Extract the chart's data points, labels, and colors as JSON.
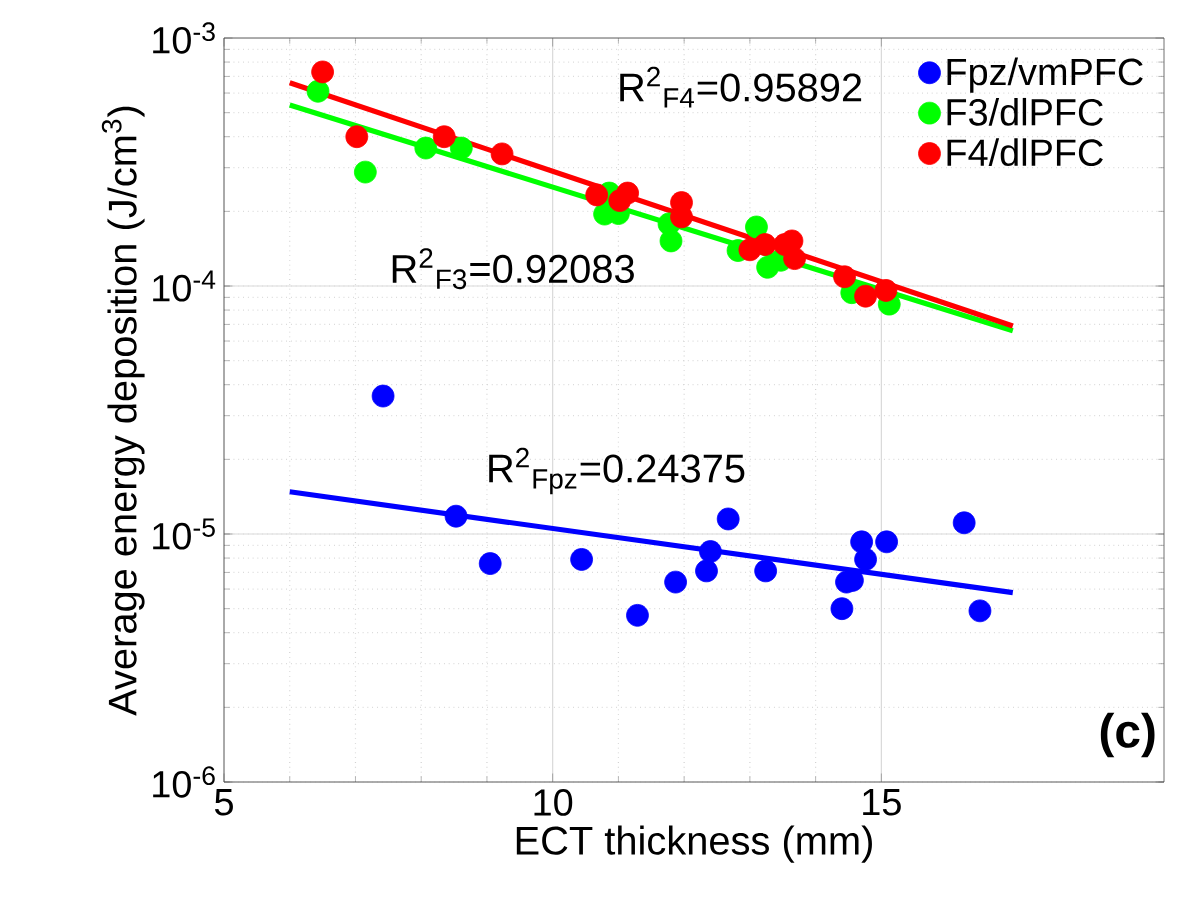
{
  "chart_data": {
    "type": "scatter",
    "xlabel": "ECT thickness (mm)",
    "ylabel": "Average energy deposition (J/cm$^{3}$)",
    "xlim": [
      5,
      19.3
    ],
    "ylim": [
      1e-06,
      0.001
    ],
    "xticks": [
      5,
      10,
      15
    ],
    "yticks": [
      {
        "value": 1e-06,
        "label": "10$^{-6}$"
      },
      {
        "value": 1e-05,
        "label": "10$^{-5}$"
      },
      {
        "value": 0.0001,
        "label": "10$^{-4}$"
      },
      {
        "value": 0.001,
        "label": "10$^{-3}$"
      }
    ],
    "log": "y",
    "grid": true,
    "legend": "top right",
    "marker": "circle",
    "series": [
      {
        "name": "Fpz/vmPFC",
        "color": "#0000ff",
        "x": [
          7.42,
          8.53,
          9.05,
          10.44,
          11.29,
          11.87,
          12.34,
          12.4,
          12.67,
          13.24,
          14.4,
          14.47,
          14.56,
          14.7,
          14.76,
          15.08,
          16.26,
          16.5
        ],
        "values": [
          3.6e-05,
          1.18e-05,
          7.6e-06,
          7.9e-06,
          4.7e-06,
          6.4e-06,
          7.1e-06,
          8.5e-06,
          1.15e-05,
          7.1e-06,
          5e-06,
          6.4e-06,
          6.5e-06,
          9.3e-06,
          7.9e-06,
          9.3e-06,
          1.11e-05,
          4.9e-06
        ]
      },
      {
        "name": "F3/dlPFC",
        "color": "#00ff00",
        "x": [
          6.43,
          7.15,
          8.07,
          8.61,
          10.79,
          10.86,
          11.0,
          11.77,
          11.8,
          12.82,
          13.1,
          13.27,
          13.47,
          14.55,
          15.12
        ],
        "values": [
          0.00061,
          0.000288,
          0.00036,
          0.00036,
          0.000195,
          0.000237,
          0.000196,
          0.000178,
          0.000152,
          0.000139,
          0.000173,
          0.000119,
          0.000127,
          9.4e-05,
          8.45e-05
        ]
      },
      {
        "name": "F4/dlPFC",
        "color": "#ff0000",
        "x": [
          6.5,
          7.02,
          8.35,
          9.23,
          10.67,
          11.02,
          11.14,
          11.96,
          11.96,
          13.0,
          13.23,
          13.53,
          13.64,
          13.68,
          14.44,
          14.76,
          15.07
        ],
        "values": [
          0.00073,
          0.0004,
          0.0004,
          0.000341,
          0.000233,
          0.000221,
          0.000237,
          0.000217,
          0.00019,
          0.00014,
          0.000147,
          0.000147,
          0.000152,
          0.000129,
          0.000109,
          9.1e-05,
          9.6e-05
        ]
      },
      {
        "type": "line",
        "marker": "none",
        "color": "#0000ff",
        "x": [
          6,
          17
        ],
        "values": [
          1.48e-05,
          5.8e-06
        ]
      },
      {
        "type": "line",
        "marker": "none",
        "color": "#00ff00",
        "x": [
          6,
          17
        ],
        "values": [
          0.000537,
          6.6e-05
        ]
      },
      {
        "type": "line",
        "marker": "none",
        "color": "#ff0000",
        "x": [
          6,
          17
        ],
        "values": [
          0.00066,
          6.9e-05
        ]
      }
    ],
    "annotations": [
      "R$^{2}$$_{F4}$=0.95892",
      "R$^{2}$$_{F3}$=0.92083",
      "R$^{2}$$_{Fpz}$=0.24375",
      "**(c)**"
    ]
  }
}
